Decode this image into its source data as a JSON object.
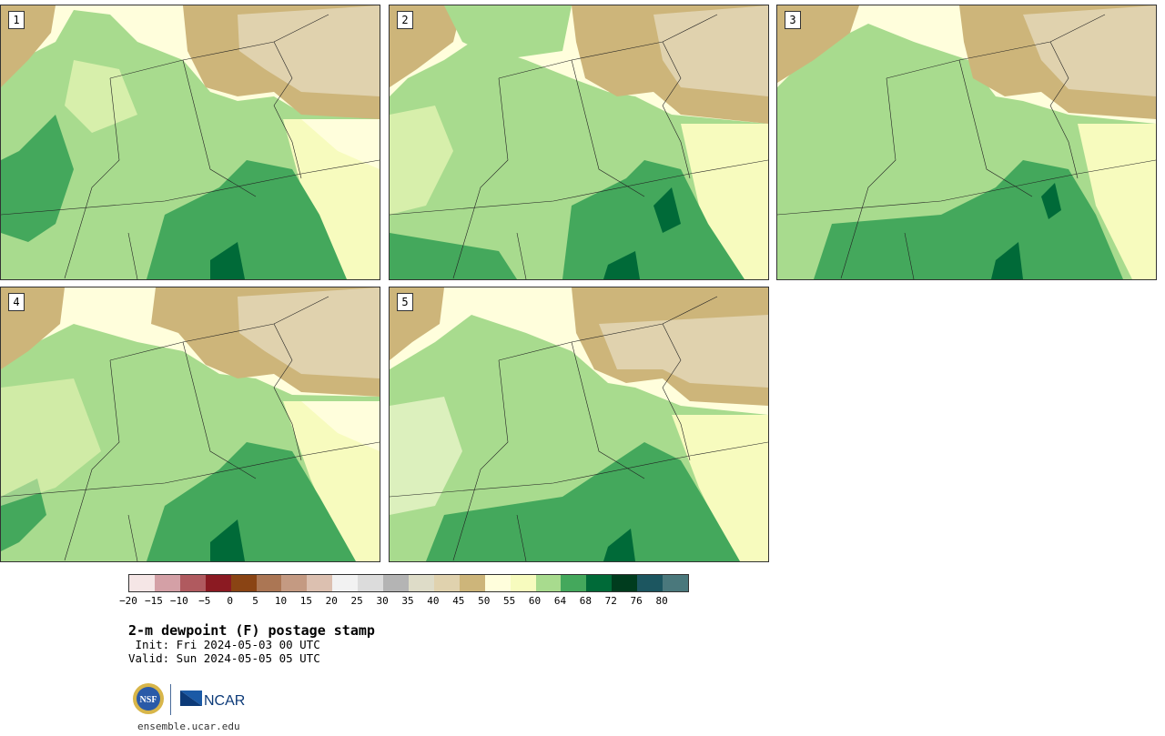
{
  "panels": [
    {
      "id": "p1",
      "label": "1"
    },
    {
      "id": "p2",
      "label": "2"
    },
    {
      "id": "p3",
      "label": "3"
    },
    {
      "id": "p4",
      "label": "4"
    },
    {
      "id": "p5",
      "label": "5"
    }
  ],
  "colorbar": {
    "colors": [
      "#f5e6e6",
      "#d4a0a6",
      "#b05a5f",
      "#8b1a22",
      "#8a4414",
      "#ab7654",
      "#c49a82",
      "#dcc0b0",
      "#f2f2f2",
      "#dcdcdc",
      "#b4b4b4",
      "#dedcc8",
      "#e0d2ae",
      "#cdb57a",
      "#fffedc",
      "#f7fbbe",
      "#a8db8e",
      "#44a85c",
      "#006a38",
      "#003c1e",
      "#1c5660",
      "#4a787c"
    ],
    "ticks": [
      "−20",
      "−15",
      "−10",
      "−5",
      "0",
      "5",
      "10",
      "15",
      "20",
      "25",
      "30",
      "35",
      "40",
      "45",
      "50",
      "55",
      "60",
      "64",
      "68",
      "72",
      "76",
      "80"
    ]
  },
  "title": "2-m dewpoint (F) postage stamp",
  "init": " Init: Fri 2024-05-03 00 UTC",
  "valid": "Valid: Sun 2024-05-05 05 UTC",
  "logos": {
    "nsf": "NSF",
    "ncar": "NCAR"
  },
  "url": "ensemble.ucar.edu"
}
